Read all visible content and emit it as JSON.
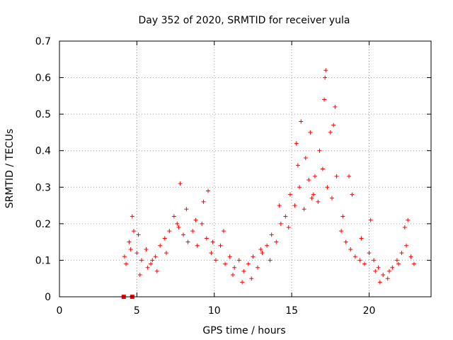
{
  "chart_data": {
    "type": "scatter",
    "title": "Day 352 of 2020, SRMTID for receiver yula",
    "xlabel": "GPS time / hours",
    "ylabel": "SRMTID / TECUs",
    "xlim": [
      0,
      24
    ],
    "ylim": [
      0,
      0.7
    ],
    "xticks": [
      0,
      5,
      10,
      15,
      20
    ],
    "xtick_labels": [
      "0",
      "5",
      "10",
      "15",
      "20"
    ],
    "yticks": [
      0,
      0.1,
      0.2,
      0.3,
      0.4,
      0.5,
      0.6,
      0.7
    ],
    "ytick_labels": [
      "0",
      "0.1",
      "0.2",
      "0.3",
      "0.4",
      "0.5",
      "0.6",
      "0.7"
    ],
    "grid": true,
    "marker": "plus",
    "color": "#ff0000",
    "series": [
      {
        "name": "SRMTID",
        "x": [
          4.2,
          4.5,
          4.8,
          5.0,
          5.3,
          5.6,
          5.9,
          6.2,
          6.5,
          6.8,
          7.1,
          7.4,
          7.7,
          8.0,
          8.3,
          8.6,
          8.9,
          9.2,
          9.5,
          9.8,
          10.1,
          10.4,
          10.7,
          11.0,
          11.3,
          11.6,
          11.9,
          12.2,
          12.5,
          12.8,
          13.1,
          13.4,
          13.7,
          14.0,
          14.3,
          14.6,
          14.9,
          15.2,
          15.5,
          15.8,
          16.1,
          16.4,
          16.7,
          17.0,
          17.3,
          17.6,
          17.9,
          18.2,
          18.5,
          18.8,
          19.1,
          19.4,
          19.7,
          20.0,
          20.3,
          20.6,
          20.9,
          21.2,
          21.5,
          21.8,
          22.1,
          22.4,
          22.7,
          22.9,
          4.3,
          4.6,
          5.1,
          5.7,
          6.3,
          6.9,
          7.6,
          8.2,
          8.8,
          9.3,
          9.9,
          10.6,
          11.2,
          11.8,
          12.4,
          13.0,
          13.6,
          14.2,
          14.8,
          15.3,
          15.6,
          15.9,
          16.2,
          16.5,
          16.8,
          17.1,
          17.2,
          17.5,
          17.8,
          18.3,
          18.9,
          19.5,
          20.1,
          20.7,
          21.3,
          21.9,
          22.5,
          4.7,
          5.2,
          6.0,
          7.8,
          9.6,
          15.4,
          16.3,
          17.15,
          17.7,
          18.7,
          20.4,
          22.3
        ],
        "y": [
          0.11,
          0.15,
          0.18,
          0.12,
          0.1,
          0.13,
          0.09,
          0.11,
          0.14,
          0.16,
          0.18,
          0.22,
          0.19,
          0.17,
          0.15,
          0.18,
          0.14,
          0.2,
          0.16,
          0.12,
          0.1,
          0.14,
          0.09,
          0.11,
          0.08,
          0.1,
          0.07,
          0.09,
          0.11,
          0.08,
          0.12,
          0.14,
          0.17,
          0.15,
          0.2,
          0.22,
          0.28,
          0.25,
          0.3,
          0.24,
          0.32,
          0.28,
          0.26,
          0.35,
          0.3,
          0.27,
          0.33,
          0.18,
          0.15,
          0.13,
          0.11,
          0.1,
          0.09,
          0.12,
          0.1,
          0.08,
          0.06,
          0.05,
          0.08,
          0.1,
          0.12,
          0.14,
          0.11,
          0.09,
          0.09,
          0.13,
          0.17,
          0.08,
          0.07,
          0.12,
          0.2,
          0.24,
          0.21,
          0.26,
          0.15,
          0.18,
          0.06,
          0.04,
          0.05,
          0.13,
          0.1,
          0.25,
          0.19,
          0.42,
          0.48,
          0.38,
          0.45,
          0.33,
          0.4,
          0.54,
          0.62,
          0.45,
          0.52,
          0.22,
          0.28,
          0.16,
          0.21,
          0.04,
          0.07,
          0.09,
          0.21,
          0.22,
          0.06,
          0.1,
          0.31,
          0.29,
          0.36,
          0.27,
          0.6,
          0.47,
          0.33,
          0.07,
          0.19
        ]
      },
      {
        "name": "zero-markers",
        "marker": "square",
        "x": [
          4.15,
          4.7
        ],
        "y": [
          0,
          0
        ]
      }
    ]
  }
}
